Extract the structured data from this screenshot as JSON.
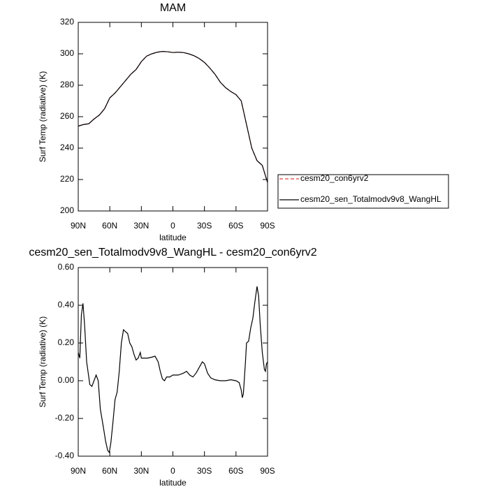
{
  "chart_data": [
    {
      "type": "line",
      "title": "MAM",
      "ylabel": "Surf Temp (radiative) (K)",
      "xlabel": "latitude",
      "xlim": [
        90,
        -90
      ],
      "xticks": [
        {
          "value": 90,
          "label": "90N"
        },
        {
          "value": 60,
          "label": "60N"
        },
        {
          "value": 30,
          "label": "30N"
        },
        0,
        {
          "value": -30,
          "label": "30S"
        },
        {
          "value": -60,
          "label": "60S"
        },
        {
          "value": -90,
          "label": "90S"
        }
      ],
      "ylim": [
        200,
        320
      ],
      "yticks": [
        200,
        220,
        240,
        260,
        280,
        300,
        320
      ],
      "legend": "right",
      "x": [
        90,
        85,
        80,
        75,
        70,
        65,
        60,
        55,
        50,
        45,
        40,
        35,
        30,
        25,
        20,
        15,
        10,
        5,
        0,
        -5,
        -10,
        -15,
        -20,
        -25,
        -30,
        -35,
        -40,
        -45,
        -50,
        -55,
        -60,
        -65,
        -70,
        -75,
        -80,
        -85,
        -90
      ],
      "series": [
        {
          "name": "cesm20_con6yrv2",
          "color": "#e04040",
          "dash": true,
          "values": [
            254,
            255,
            255.5,
            258.5,
            261,
            265,
            272,
            275,
            279,
            283,
            287,
            290,
            295,
            298.5,
            300,
            301,
            301.5,
            301.3,
            300.8,
            301,
            300.8,
            300,
            298.8,
            297,
            294.5,
            291,
            287,
            282,
            278.5,
            276,
            274,
            270,
            255,
            240,
            232,
            229,
            218
          ]
        },
        {
          "name": "cesm20_sen_Totalmodv9v8_WangHL",
          "color": "#000000",
          "dash": false,
          "values": [
            254,
            255,
            255.5,
            258.5,
            261,
            265,
            272,
            275,
            279,
            283,
            287,
            290,
            295,
            298.5,
            300,
            301,
            301.5,
            301.3,
            300.8,
            301,
            300.8,
            300,
            298.8,
            297,
            294.5,
            291,
            287,
            282,
            278.5,
            276,
            274,
            270,
            255,
            240,
            232,
            229,
            218
          ]
        }
      ]
    },
    {
      "type": "line",
      "title": "cesm20_sen_Totalmodv9v8_WangHL - cesm20_con6yrv2",
      "ylabel": "Surf Temp (radiative) (K)",
      "xlabel": "latitude",
      "xlim": [
        90,
        -90
      ],
      "xticks": [
        {
          "value": 90,
          "label": "90N"
        },
        {
          "value": 60,
          "label": "60N"
        },
        {
          "value": 30,
          "label": "30N"
        },
        0,
        {
          "value": -30,
          "label": "30S"
        },
        {
          "value": -60,
          "label": "60S"
        },
        {
          "value": -90,
          "label": "90S"
        }
      ],
      "ylim": [
        -0.4,
        0.6
      ],
      "yticks": [
        {
          "value": -0.4,
          "label": "-0.40"
        },
        {
          "value": -0.2,
          "label": "-0.20"
        },
        {
          "value": 0,
          "label": "0.00"
        },
        {
          "value": 0.2,
          "label": "0.20"
        },
        {
          "value": 0.4,
          "label": "0.40"
        },
        {
          "value": 0.6,
          "label": "0.60"
        }
      ],
      "x": [
        90,
        88.5,
        87,
        85.5,
        84,
        82,
        80,
        79,
        77,
        75,
        73,
        71,
        69,
        66,
        64,
        62,
        60.5,
        59,
        57,
        55,
        53,
        51,
        49,
        47,
        45,
        43,
        41,
        39,
        37,
        35,
        33,
        31,
        30,
        27,
        24,
        20,
        17,
        14,
        12,
        10,
        8,
        6,
        3,
        0,
        -5,
        -10,
        -13,
        -16,
        -19,
        -22,
        -25,
        -28,
        -30,
        -33,
        -36,
        -40,
        -45,
        -50,
        -55,
        -60,
        -63,
        -65,
        -66,
        -67,
        -69,
        -70,
        -72,
        -74,
        -76,
        -78,
        -80,
        -81.5,
        -83,
        -85,
        -87,
        -88,
        -89,
        -90
      ],
      "series": [
        {
          "color": "#000000",
          "values": [
            0.15,
            0.12,
            0.35,
            0.41,
            0.3,
            0.1,
            0.02,
            -0.02,
            -0.03,
            0,
            0.03,
            0,
            -0.15,
            -0.25,
            -0.32,
            -0.37,
            -0.38,
            -0.33,
            -0.22,
            -0.1,
            -0.06,
            0.05,
            0.2,
            0.27,
            0.26,
            0.25,
            0.2,
            0.18,
            0.14,
            0.11,
            0.12,
            0.15,
            0.12,
            0.12,
            0.12,
            0.125,
            0.13,
            0.1,
            0.05,
            0.01,
            0,
            0.02,
            0.02,
            0.03,
            0.03,
            0.04,
            0.05,
            0.03,
            0.02,
            0.04,
            0.07,
            0.1,
            0.09,
            0.04,
            0.015,
            0.005,
            0,
            0,
            0.005,
            0,
            -0.01,
            -0.05,
            -0.09,
            -0.07,
            0.1,
            0.2,
            0.21,
            0.28,
            0.33,
            0.42,
            0.5,
            0.45,
            0.3,
            0.15,
            0.06,
            0.05,
            0.09,
            0.1
          ]
        }
      ]
    }
  ]
}
